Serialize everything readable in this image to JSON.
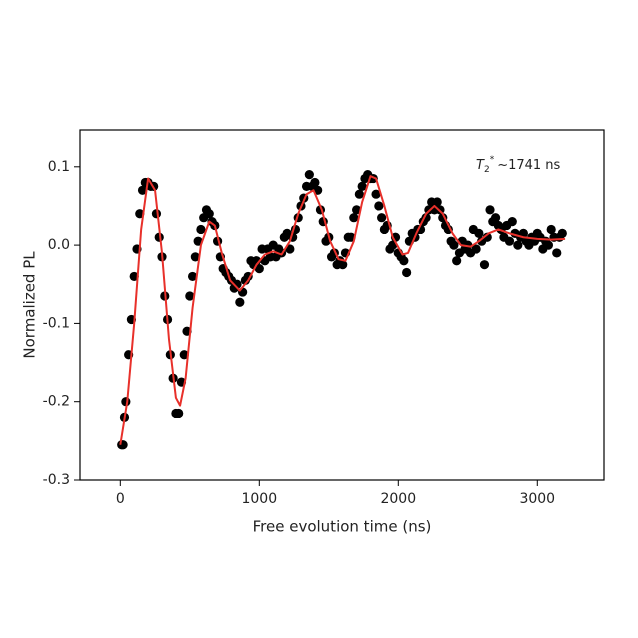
{
  "chart_data": {
    "type": "scatter",
    "xlabel": "Free evolution time (ns)",
    "ylabel": "Normalized PL",
    "annotation": {
      "symbol": "T",
      "subscript": "2",
      "superscript": "*",
      "text": "~1741 ns"
    },
    "xlim": [
      -290,
      3480
    ],
    "ylim": [
      -0.3,
      0.147
    ],
    "xticks": [
      0,
      1000,
      2000,
      3000
    ],
    "yticks": [
      0.1,
      {
        "value": 0,
        "label": "0.0"
      },
      -0.1,
      -0.2,
      -0.3
    ],
    "points": {
      "color": "#000000",
      "x": [
        10,
        20,
        30,
        40,
        60,
        80,
        100,
        120,
        140,
        160,
        180,
        200,
        220,
        240,
        260,
        280,
        300,
        320,
        340,
        360,
        380,
        400,
        420,
        440,
        460,
        480,
        500,
        520,
        540,
        560,
        580,
        600,
        620,
        640,
        660,
        680,
        700,
        720,
        740,
        760,
        780,
        800,
        820,
        840,
        860,
        880,
        900,
        920,
        940,
        960,
        980,
        1000,
        1020,
        1040,
        1060,
        1080,
        1100,
        1120,
        1140,
        1160,
        1180,
        1200,
        1220,
        1240,
        1260,
        1280,
        1300,
        1320,
        1340,
        1360,
        1380,
        1400,
        1420,
        1440,
        1460,
        1480,
        1500,
        1520,
        1540,
        1560,
        1580,
        1600,
        1620,
        1640,
        1660,
        1680,
        1700,
        1720,
        1740,
        1760,
        1780,
        1800,
        1820,
        1840,
        1860,
        1880,
        1900,
        1920,
        1940,
        1960,
        1980,
        2000,
        2020,
        2040,
        2060,
        2080,
        2100,
        2120,
        2140,
        2160,
        2180,
        2200,
        2220,
        2240,
        2260,
        2280,
        2300,
        2320,
        2340,
        2360,
        2380,
        2400,
        2420,
        2440,
        2460,
        2480,
        2500,
        2520,
        2540,
        2560,
        2580,
        2600,
        2620,
        2640,
        2660,
        2680,
        2700,
        2720,
        2740,
        2760,
        2780,
        2800,
        2820,
        2840,
        2860,
        2880,
        2900,
        2920,
        2940,
        2960,
        2980,
        3000,
        3020,
        3040,
        3060,
        3080,
        3100,
        3120,
        3140,
        3160,
        3180
      ],
      "values": [
        -0.255,
        -0.255,
        -0.22,
        -0.2,
        -0.14,
        -0.095,
        -0.04,
        -0.005,
        0.04,
        0.07,
        0.08,
        0.08,
        0.075,
        0.075,
        0.04,
        0.01,
        -0.015,
        -0.065,
        -0.095,
        -0.14,
        -0.17,
        -0.215,
        -0.215,
        -0.175,
        -0.14,
        -0.11,
        -0.065,
        -0.04,
        -0.015,
        0.005,
        0.02,
        0.035,
        0.045,
        0.04,
        0.03,
        0.025,
        0.005,
        -0.015,
        -0.03,
        -0.035,
        -0.04,
        -0.045,
        -0.055,
        -0.05,
        -0.073,
        -0.06,
        -0.045,
        -0.04,
        -0.02,
        -0.025,
        -0.02,
        -0.03,
        -0.005,
        -0.02,
        -0.005,
        -0.015,
        0.0,
        -0.015,
        -0.005,
        -0.01,
        0.01,
        0.015,
        -0.005,
        0.01,
        0.02,
        0.035,
        0.05,
        0.06,
        0.075,
        0.09,
        0.075,
        0.08,
        0.07,
        0.045,
        0.03,
        0.005,
        0.01,
        -0.015,
        -0.01,
        -0.025,
        -0.02,
        -0.025,
        -0.01,
        0.01,
        0.01,
        0.035,
        0.045,
        0.065,
        0.075,
        0.085,
        0.09,
        0.085,
        0.085,
        0.065,
        0.05,
        0.035,
        0.02,
        0.025,
        -0.005,
        0.0,
        0.01,
        -0.01,
        -0.015,
        -0.02,
        -0.035,
        0.005,
        0.015,
        0.01,
        0.02,
        0.02,
        0.03,
        0.035,
        0.045,
        0.055,
        0.045,
        0.055,
        0.045,
        0.035,
        0.025,
        0.02,
        0.005,
        0.0,
        -0.02,
        -0.01,
        0.005,
        -0.005,
        0.0,
        -0.01,
        0.02,
        -0.005,
        0.015,
        0.005,
        -0.025,
        0.01,
        0.045,
        0.03,
        0.035,
        0.025,
        0.02,
        0.01,
        0.025,
        0.005,
        0.03,
        0.015,
        0.0,
        0.01,
        0.015,
        0.005,
        0.0,
        0.01,
        0.005,
        0.015,
        0.01,
        -0.005,
        0.005,
        0.0,
        0.02,
        0.01,
        -0.01,
        0.01,
        0.015
      ]
    },
    "fit": {
      "color": "#e8302a",
      "x": [
        0,
        50,
        100,
        150,
        200,
        250,
        300,
        350,
        400,
        430,
        470,
        520,
        580,
        640,
        680,
        730,
        790,
        860,
        920,
        980,
        1040,
        1100,
        1160,
        1220,
        1280,
        1340,
        1390,
        1450,
        1510,
        1570,
        1620,
        1680,
        1740,
        1800,
        1840,
        1900,
        1960,
        2030,
        2070,
        2130,
        2200,
        2260,
        2320,
        2390,
        2450,
        2520,
        2580,
        2650,
        2720,
        2800,
        2900,
        3000,
        3100,
        3200
      ],
      "values": [
        -0.255,
        -0.2,
        -0.1,
        0.02,
        0.085,
        0.07,
        -0.01,
        -0.12,
        -0.195,
        -0.205,
        -0.17,
        -0.08,
        0.0,
        0.03,
        0.025,
        -0.01,
        -0.045,
        -0.058,
        -0.045,
        -0.025,
        -0.012,
        -0.008,
        -0.012,
        0.005,
        0.04,
        0.065,
        0.07,
        0.045,
        0.005,
        -0.018,
        -0.02,
        0.005,
        0.055,
        0.088,
        0.085,
        0.05,
        0.01,
        -0.012,
        -0.01,
        0.015,
        0.04,
        0.05,
        0.04,
        0.015,
        0.0,
        -0.002,
        0.005,
        0.015,
        0.02,
        0.015,
        0.01,
        0.008,
        0.007,
        0.008
      ]
    }
  }
}
